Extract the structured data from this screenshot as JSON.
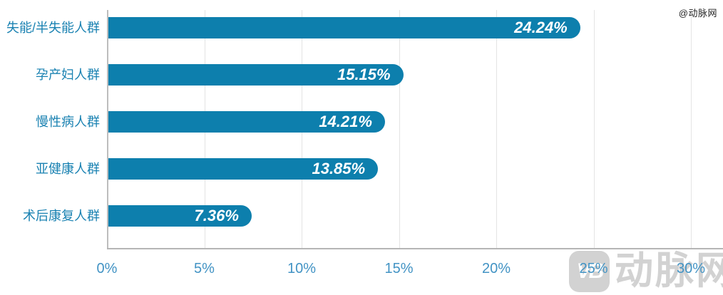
{
  "watermark": {
    "small_text": "@动脉网",
    "logo_text": "VB",
    "brand_text": "动脉网"
  },
  "chart_data": {
    "type": "bar",
    "orientation": "horizontal",
    "title": "",
    "xlabel": "",
    "ylabel": "",
    "categories": [
      "失能/半失能人群",
      "孕产妇人群",
      "慢性病人群",
      "亚健康人群",
      "术后康复人群"
    ],
    "values": [
      24.24,
      15.15,
      14.21,
      13.85,
      7.36
    ],
    "value_labels": [
      "24.24%",
      "15.15%",
      "14.21%",
      "13.85%",
      "7.36%"
    ],
    "x_ticks": [
      0,
      5,
      10,
      15,
      20,
      25,
      30
    ],
    "x_tick_labels": [
      "0%",
      "5%",
      "10%",
      "15%",
      "20%",
      "25%",
      "30%"
    ],
    "xlim": [
      0,
      30
    ],
    "grid": true,
    "legend": false,
    "bar_color": "#0d7fad",
    "value_label_color": "#ffffff",
    "category_label_color": "#1a82b2",
    "tick_label_color": "#4293c4",
    "gridline_color": "#e4e4e4",
    "axis_line_color": "#b5b5b5",
    "watermark_color": "#d2d2d2"
  }
}
